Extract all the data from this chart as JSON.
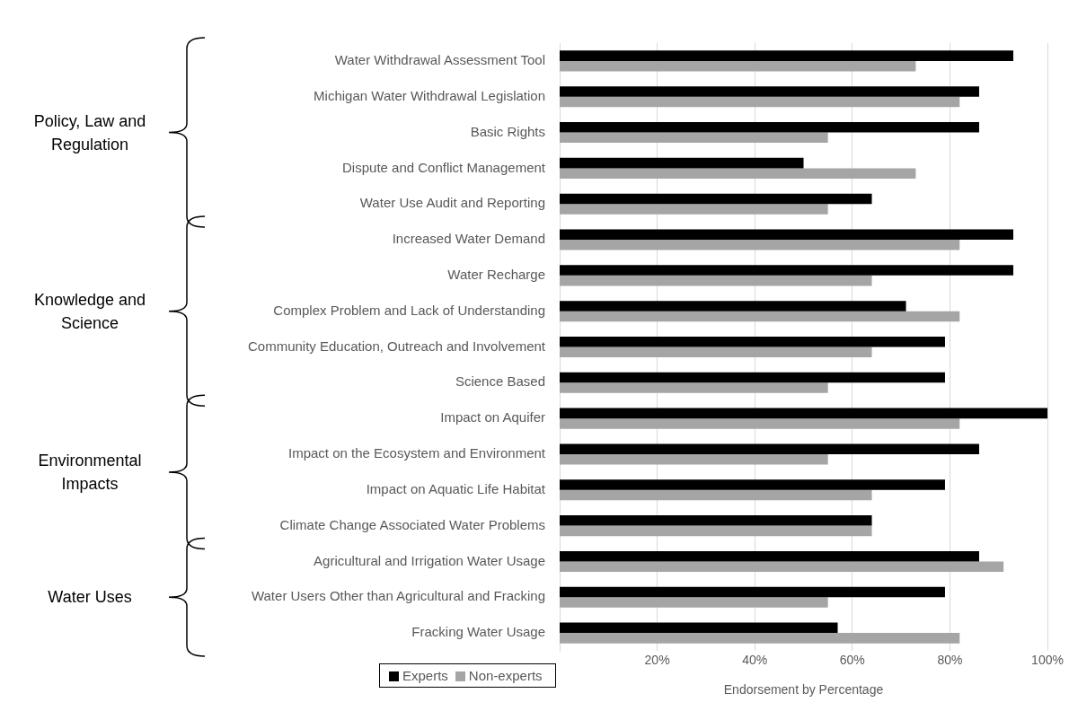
{
  "chart_data": {
    "type": "bar",
    "orientation": "horizontal",
    "categories": [
      "Water Withdrawal Assessment Tool",
      "Michigan Water Withdrawal Legislation",
      "Basic Rights",
      "Dispute and Conflict Management",
      "Water Use Audit and Reporting",
      "Increased Water Demand",
      "Water Recharge",
      "Complex Problem and Lack of Understanding",
      "Community Education, Outreach and Involvement",
      "Science Based",
      "Impact on Aquifer",
      "Impact on the Ecosystem and Environment",
      "Impact on Aquatic Life Habitat",
      "Climate Change Associated Water Problems",
      "Agricultural and Irrigation Water Usage",
      "Water Users Other than Agricultural and Fracking",
      "Fracking Water Usage"
    ],
    "series": [
      {
        "name": "Experts",
        "color": "#000000",
        "values": [
          93,
          86,
          86,
          50,
          64,
          93,
          93,
          71,
          79,
          79,
          100,
          86,
          79,
          64,
          86,
          79,
          57
        ]
      },
      {
        "name": "Non-experts",
        "color": "#a5a5a5",
        "values": [
          73,
          82,
          55,
          73,
          55,
          82,
          64,
          82,
          64,
          55,
          82,
          55,
          64,
          64,
          91,
          55,
          82
        ]
      }
    ],
    "xlim": [
      0,
      100
    ],
    "xticks": [
      {
        "value": 20,
        "label": "20%"
      },
      {
        "value": 40,
        "label": "40%"
      },
      {
        "value": 60,
        "label": "60%"
      },
      {
        "value": 80,
        "label": "80%"
      },
      {
        "value": 100,
        "label": "100%"
      }
    ],
    "xlabel": "Endorsement by Percentage",
    "grid": "x",
    "legend": "bottom left",
    "annotations": [
      "Policy, Law and Regulation",
      "Knowledge and Science",
      "Environmental Impacts",
      "Water Uses"
    ]
  }
}
